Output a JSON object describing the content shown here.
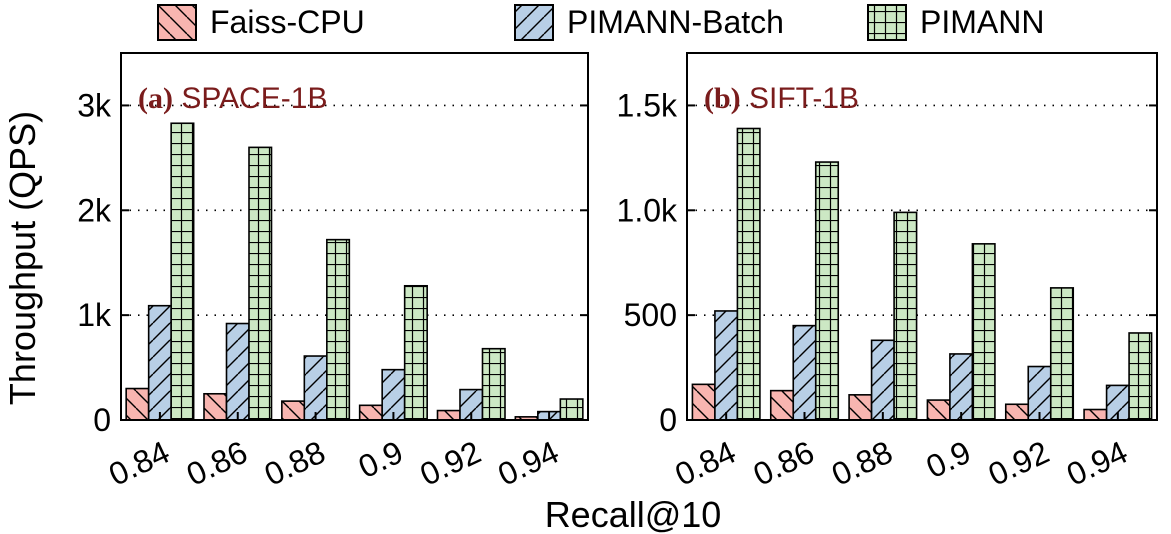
{
  "legend": [
    {
      "name": "Faiss-CPU",
      "color": "#f8b5b0",
      "pattern": "backslash"
    },
    {
      "name": "PIMANN-Batch",
      "color": "#b8cfe6",
      "pattern": "slash"
    },
    {
      "name": "PIMANN",
      "color": "#cce8c4",
      "pattern": "grid"
    }
  ],
  "ylabel": "Throughput (QPS)",
  "xlabel": "Recall@10",
  "title_color": "#7a1c1c",
  "chart_data": [
    {
      "type": "bar",
      "title_tag": "(a)",
      "title": "SPACE-1B",
      "categories": [
        "0.84",
        "0.86",
        "0.88",
        "0.9",
        "0.92",
        "0.94"
      ],
      "series": [
        {
          "name": "Faiss-CPU",
          "values": [
            300,
            250,
            180,
            140,
            90,
            30
          ]
        },
        {
          "name": "PIMANN-Batch",
          "values": [
            1090,
            920,
            610,
            480,
            290,
            80
          ]
        },
        {
          "name": "PIMANN",
          "values": [
            2830,
            2600,
            1720,
            1280,
            680,
            200
          ]
        }
      ],
      "ylim": [
        0,
        3500
      ],
      "yticks": [
        0,
        1000,
        2000,
        3000
      ],
      "yticklabels": [
        "0",
        "1k",
        "2k",
        "3k"
      ],
      "grid": "y-dotted"
    },
    {
      "type": "bar",
      "title_tag": "(b)",
      "title": "SIFT-1B",
      "categories": [
        "0.84",
        "0.86",
        "0.88",
        "0.9",
        "0.92",
        "0.94"
      ],
      "series": [
        {
          "name": "Faiss-CPU",
          "values": [
            170,
            140,
            120,
            95,
            75,
            50
          ]
        },
        {
          "name": "PIMANN-Batch",
          "values": [
            520,
            450,
            380,
            315,
            255,
            165
          ]
        },
        {
          "name": "PIMANN",
          "values": [
            1390,
            1230,
            990,
            840,
            630,
            415
          ]
        }
      ],
      "ylim": [
        0,
        1750
      ],
      "yticks": [
        0,
        500,
        1000,
        1500
      ],
      "yticklabels": [
        "0",
        "500",
        "1.0k",
        "1.5k"
      ],
      "grid": "y-dotted"
    }
  ]
}
